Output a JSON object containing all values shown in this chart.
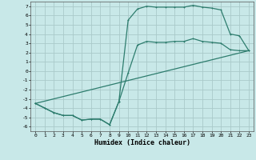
{
  "xlabel": "Humidex (Indice chaleur)",
  "background_color": "#c8e8e8",
  "grid_color": "#aacaca",
  "line_color": "#2e7d6e",
  "xlim": [
    -0.5,
    23.5
  ],
  "ylim": [
    -6.5,
    7.5
  ],
  "xticks": [
    0,
    1,
    2,
    3,
    4,
    5,
    6,
    7,
    8,
    9,
    10,
    11,
    12,
    13,
    14,
    15,
    16,
    17,
    18,
    19,
    20,
    21,
    22,
    23
  ],
  "yticks": [
    -6,
    -5,
    -4,
    -3,
    -2,
    -1,
    0,
    1,
    2,
    3,
    4,
    5,
    6,
    7
  ],
  "curve1_x": [
    0,
    1,
    2,
    3,
    4,
    5,
    6,
    7,
    8,
    9,
    10,
    11,
    12,
    13,
    14,
    15,
    16,
    17,
    18,
    19,
    20,
    21,
    22,
    23
  ],
  "curve1_y": [
    -3.5,
    -4.0,
    -4.5,
    -4.8,
    -4.8,
    -5.3,
    -5.2,
    -5.2,
    -5.8,
    -3.3,
    -0.2,
    2.8,
    3.2,
    3.1,
    3.1,
    3.2,
    3.2,
    3.5,
    3.2,
    3.1,
    3.0,
    2.3,
    2.2,
    2.2
  ],
  "curve2_x": [
    0,
    1,
    2,
    3,
    4,
    5,
    6,
    7,
    8,
    9,
    10,
    11,
    12,
    13,
    14,
    15,
    16,
    17,
    18,
    19,
    20,
    21,
    22,
    23
  ],
  "curve2_y": [
    -3.5,
    -4.0,
    -4.5,
    -4.8,
    -4.8,
    -5.3,
    -5.2,
    -5.2,
    -5.8,
    -3.3,
    5.5,
    6.7,
    7.0,
    6.9,
    6.9,
    6.9,
    6.9,
    7.1,
    6.9,
    6.8,
    6.6,
    4.0,
    3.8,
    2.2
  ],
  "curve3_x": [
    0,
    23
  ],
  "curve3_y": [
    -3.5,
    2.2
  ]
}
